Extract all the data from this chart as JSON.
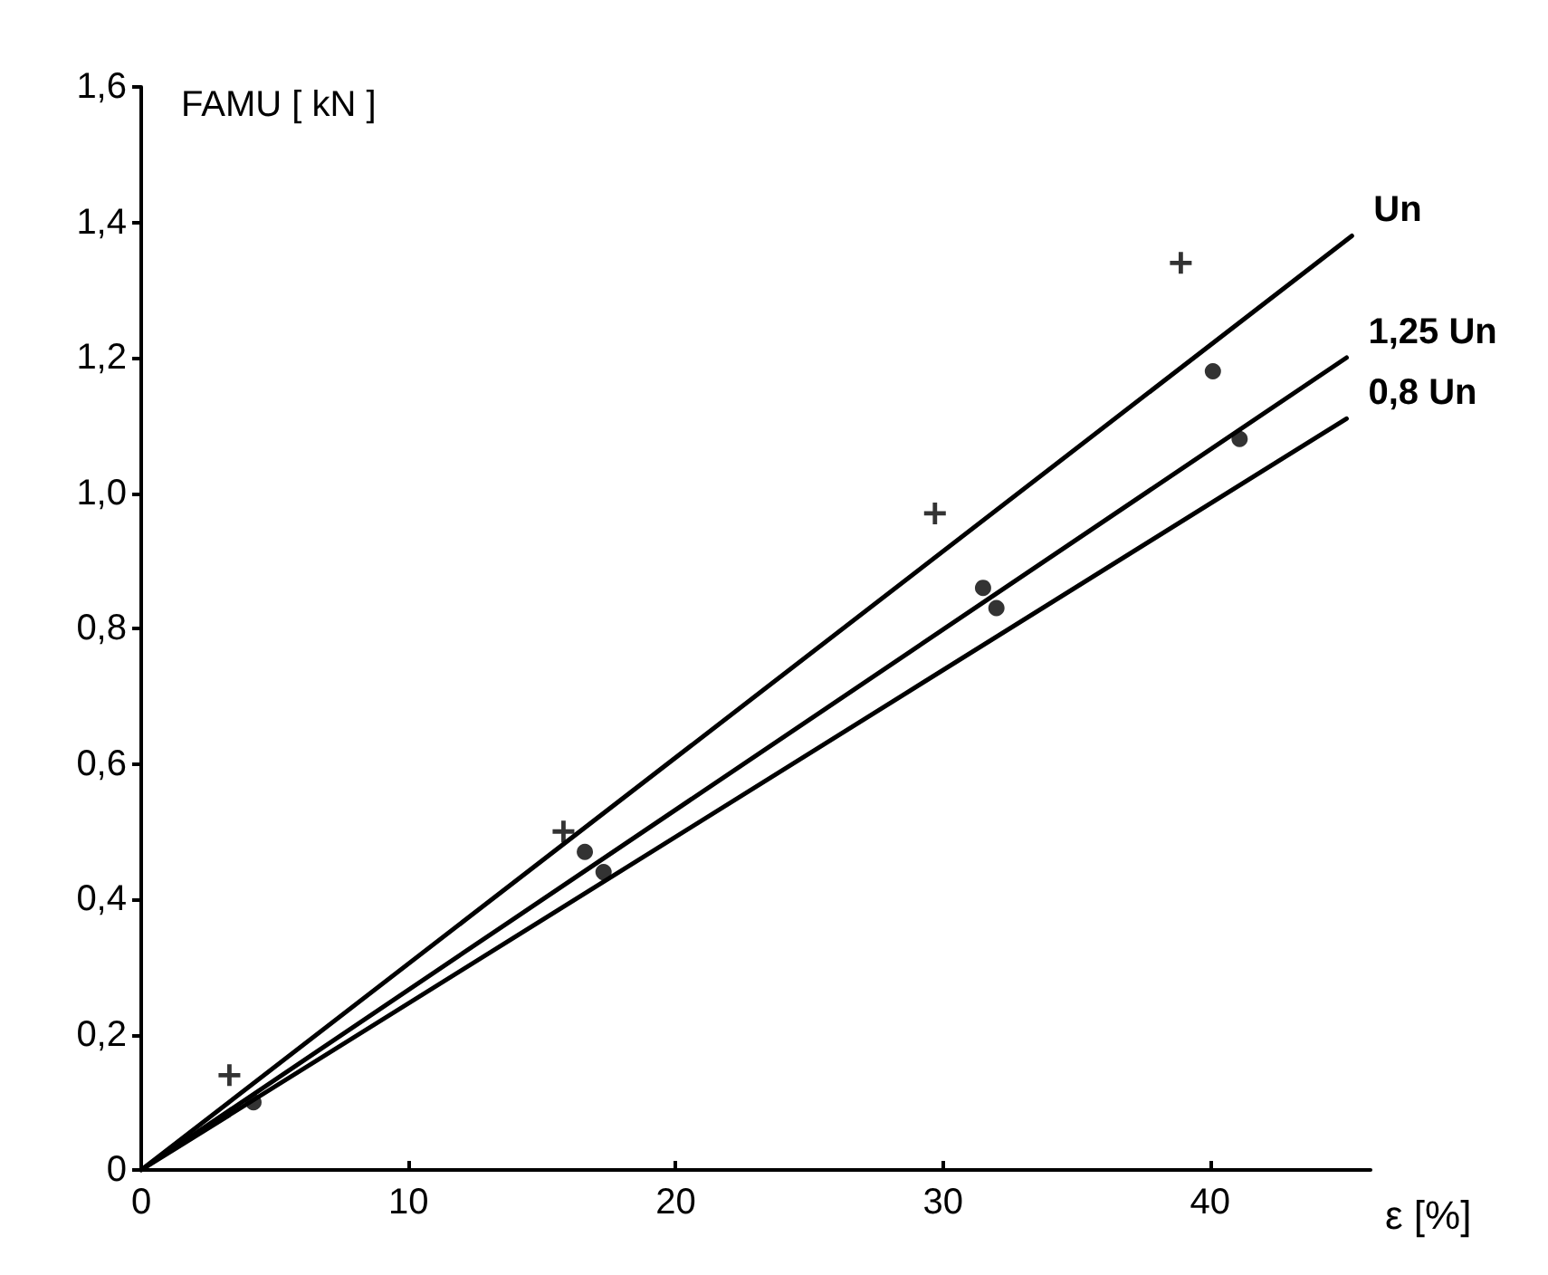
{
  "chart_data": {
    "type": "line",
    "xlabel": "ε [%]",
    "ylabel": "FAMU [ kN ]",
    "xlim": [
      0,
      46
    ],
    "xticks": [
      0,
      10,
      20,
      30,
      40
    ],
    "ylim": [
      0,
      1.6
    ],
    "yticks": [
      0,
      {
        "value": 0.2,
        "label": "0,2"
      },
      {
        "value": 0.4,
        "label": "0,4"
      },
      {
        "value": 0.6,
        "label": "0,6"
      },
      {
        "value": 0.8,
        "label": "0,8"
      },
      {
        "value": 1.0,
        "label": "1,0"
      },
      {
        "value": 1.2,
        "label": "1,2"
      },
      {
        "value": 1.4,
        "label": "1,4"
      },
      {
        "value": 1.6,
        "label": "1,6"
      }
    ],
    "grid": false,
    "legend": false,
    "series": [
      {
        "name": "Un",
        "type": "line",
        "color": "#000000",
        "marker": "none",
        "x": [
          0,
          45.3
        ],
        "values": [
          0,
          1.38
        ]
      },
      {
        "name": "1,25 Un",
        "type": "line",
        "color": "#000000",
        "marker": "none",
        "x": [
          0,
          45.1
        ],
        "values": [
          0,
          1.2
        ]
      },
      {
        "name": "0,8 Un",
        "type": "line",
        "color": "#000000",
        "marker": "none",
        "x": [
          0,
          45.1
        ],
        "values": [
          0,
          1.11
        ]
      },
      {
        "type": "scatter",
        "color": "#000000",
        "marker": "cross",
        "x": [
          3.3,
          15.8,
          29.7,
          38.9
        ],
        "values": [
          0.14,
          0.5,
          0.97,
          1.34
        ]
      },
      {
        "type": "scatter",
        "color": "#000000",
        "marker": "circle",
        "x": [
          16.6,
          31.5,
          40.1
        ],
        "values": [
          0.47,
          0.86,
          1.18
        ]
      },
      {
        "type": "scatter",
        "color": "#000000",
        "marker": "circle",
        "x": [
          4.2,
          17.3,
          32.0,
          41.1
        ],
        "values": [
          0.1,
          0.44,
          0.83,
          1.08
        ]
      }
    ]
  }
}
